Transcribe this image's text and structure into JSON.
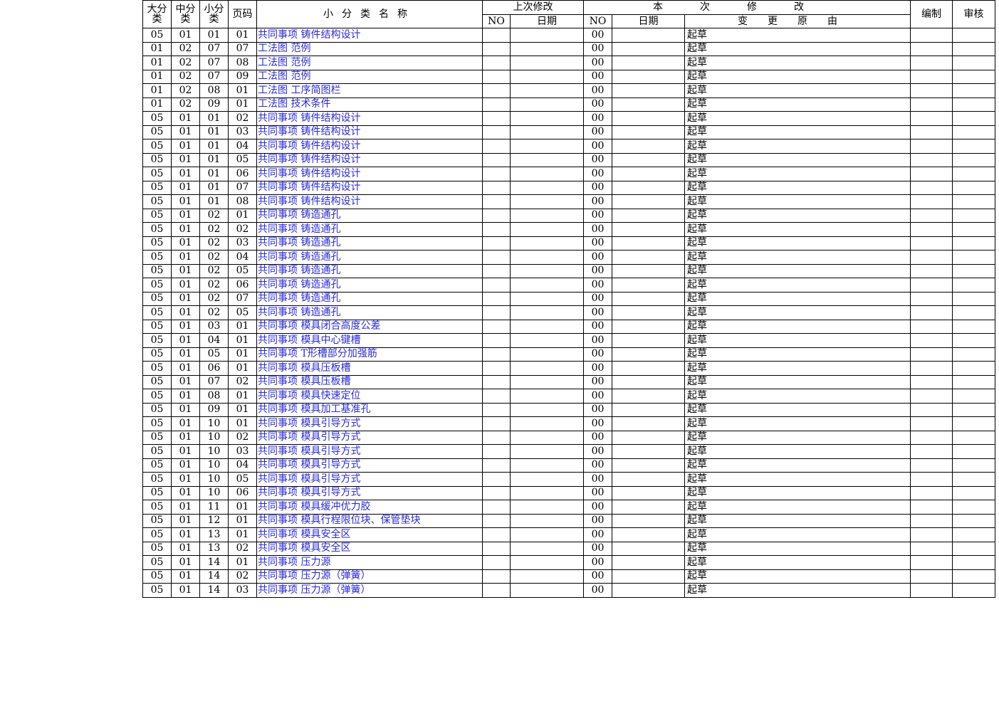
{
  "header": {
    "major": "大分类",
    "middle": "中分类",
    "minor": "小分类",
    "page": "页码",
    "name": "小分类名称",
    "previous": "上次修改",
    "current": "本次修改",
    "no_prev": "NO",
    "date_prev": "日期",
    "no_cur": "NO",
    "date_cur": "日期",
    "reason": "变更原由",
    "editor": "编制",
    "reviewer": "审核"
  },
  "rows": [
    {
      "codes": [
        "05",
        "01",
        "01",
        "01"
      ],
      "name": "共同事项 铸件结构设计",
      "no": "00",
      "reason": "起草"
    },
    {
      "codes": [
        "01",
        "02",
        "07",
        "07"
      ],
      "name": "工法图 范例",
      "no": "00",
      "reason": "起草"
    },
    {
      "codes": [
        "01",
        "02",
        "07",
        "08"
      ],
      "name": "工法图 范例",
      "no": "00",
      "reason": "起草"
    },
    {
      "codes": [
        "01",
        "02",
        "07",
        "09"
      ],
      "name": "工法图 范例",
      "no": "00",
      "reason": "起草"
    },
    {
      "codes": [
        "01",
        "02",
        "08",
        "01"
      ],
      "name": "工法图 工序简图栏",
      "no": "00",
      "reason": "起草"
    },
    {
      "codes": [
        "01",
        "02",
        "09",
        "01"
      ],
      "name": "工法图 技术条件",
      "no": "00",
      "reason": "起草"
    },
    {
      "codes": [
        "05",
        "01",
        "01",
        "02"
      ],
      "name": "共同事项 铸件结构设计",
      "no": "00",
      "reason": "起草"
    },
    {
      "codes": [
        "05",
        "01",
        "01",
        "03"
      ],
      "name": "共同事项 铸件结构设计",
      "no": "00",
      "reason": "起草"
    },
    {
      "codes": [
        "05",
        "01",
        "01",
        "04"
      ],
      "name": "共同事项 铸件结构设计",
      "no": "00",
      "reason": "起草"
    },
    {
      "codes": [
        "05",
        "01",
        "01",
        "05"
      ],
      "name": "共同事项 铸件结构设计",
      "no": "00",
      "reason": "起草"
    },
    {
      "codes": [
        "05",
        "01",
        "01",
        "06"
      ],
      "name": "共同事项 铸件结构设计",
      "no": "00",
      "reason": "起草"
    },
    {
      "codes": [
        "05",
        "01",
        "01",
        "07"
      ],
      "name": "共同事项 铸件结构设计",
      "no": "00",
      "reason": "起草"
    },
    {
      "codes": [
        "05",
        "01",
        "01",
        "08"
      ],
      "name": "共同事项 铸件结构设计",
      "no": "00",
      "reason": "起草"
    },
    {
      "codes": [
        "05",
        "01",
        "02",
        "01"
      ],
      "name": "共同事项 铸造通孔",
      "no": "00",
      "reason": "起草"
    },
    {
      "codes": [
        "05",
        "01",
        "02",
        "02"
      ],
      "name": "共同事项 铸造通孔",
      "no": "00",
      "reason": "起草"
    },
    {
      "codes": [
        "05",
        "01",
        "02",
        "03"
      ],
      "name": "共同事项 铸造通孔",
      "no": "00",
      "reason": "起草"
    },
    {
      "codes": [
        "05",
        "01",
        "02",
        "04"
      ],
      "name": "共同事项 铸造通孔",
      "no": "00",
      "reason": "起草"
    },
    {
      "codes": [
        "05",
        "01",
        "02",
        "05"
      ],
      "name": "共同事项 铸造通孔",
      "no": "00",
      "reason": "起草"
    },
    {
      "codes": [
        "05",
        "01",
        "02",
        "06"
      ],
      "name": "共同事项 铸造通孔",
      "no": "00",
      "reason": "起草"
    },
    {
      "codes": [
        "05",
        "01",
        "02",
        "07"
      ],
      "name": "共同事项 铸造通孔",
      "no": "00",
      "reason": "起草"
    },
    {
      "codes": [
        "05",
        "01",
        "02",
        "05"
      ],
      "name": "共同事项 铸造通孔",
      "no": "00",
      "reason": "起草"
    },
    {
      "codes": [
        "05",
        "01",
        "03",
        "01"
      ],
      "name": "共同事项 模具闭合高度公差",
      "no": "00",
      "reason": "起草"
    },
    {
      "codes": [
        "05",
        "01",
        "04",
        "01"
      ],
      "name": "共同事项 模具中心键槽",
      "no": "00",
      "reason": "起草"
    },
    {
      "codes": [
        "05",
        "01",
        "05",
        "01"
      ],
      "name": "共同事项 T形槽部分加强筋",
      "no": "00",
      "reason": "起草"
    },
    {
      "codes": [
        "05",
        "01",
        "06",
        "01"
      ],
      "name": "共同事项 模具压板槽",
      "no": "00",
      "reason": "起草"
    },
    {
      "codes": [
        "05",
        "01",
        "07",
        "02"
      ],
      "name": "共同事项 模具压板槽",
      "no": "00",
      "reason": "起草"
    },
    {
      "codes": [
        "05",
        "01",
        "08",
        "01"
      ],
      "name": "共同事项 模具快速定位",
      "no": "00",
      "reason": "起草"
    },
    {
      "codes": [
        "05",
        "01",
        "09",
        "01"
      ],
      "name": "共同事项 模具加工基准孔",
      "no": "00",
      "reason": "起草"
    },
    {
      "codes": [
        "05",
        "01",
        "10",
        "01"
      ],
      "name": "共同事项 模具引导方式",
      "no": "00",
      "reason": "起草"
    },
    {
      "codes": [
        "05",
        "01",
        "10",
        "02"
      ],
      "name": "共同事项 模具引导方式",
      "no": "00",
      "reason": "起草"
    },
    {
      "codes": [
        "05",
        "01",
        "10",
        "03"
      ],
      "name": "共同事项 模具引导方式",
      "no": "00",
      "reason": "起草"
    },
    {
      "codes": [
        "05",
        "01",
        "10",
        "04"
      ],
      "name": "共同事项 模具引导方式",
      "no": "00",
      "reason": "起草"
    },
    {
      "codes": [
        "05",
        "01",
        "10",
        "05"
      ],
      "name": "共同事项 模具引导方式",
      "no": "00",
      "reason": "起草"
    },
    {
      "codes": [
        "05",
        "01",
        "10",
        "06"
      ],
      "name": "共同事项 模具引导方式",
      "no": "00",
      "reason": "起草"
    },
    {
      "codes": [
        "05",
        "01",
        "11",
        "01"
      ],
      "name": "共同事项 模具缓冲优力胶",
      "no": "00",
      "reason": "起草"
    },
    {
      "codes": [
        "05",
        "01",
        "12",
        "01"
      ],
      "name": "共同事项 模具行程限位块、保管垫块",
      "no": "00",
      "reason": "起草"
    },
    {
      "codes": [
        "05",
        "01",
        "13",
        "01"
      ],
      "name": "共同事项 模具安全区",
      "no": "00",
      "reason": "起草"
    },
    {
      "codes": [
        "05",
        "01",
        "13",
        "02"
      ],
      "name": "共同事项 模具安全区",
      "no": "00",
      "reason": "起草"
    },
    {
      "codes": [
        "05",
        "01",
        "14",
        "01"
      ],
      "name": "共同事项 压力源",
      "no": "00",
      "reason": "起草"
    },
    {
      "codes": [
        "05",
        "01",
        "14",
        "02"
      ],
      "name": "共同事项 压力源（弹簧）",
      "no": "00",
      "reason": "起草"
    },
    {
      "codes": [
        "05",
        "01",
        "14",
        "03"
      ],
      "name": "共同事项 压力源（弹簧）",
      "no": "00",
      "reason": "起草"
    }
  ]
}
